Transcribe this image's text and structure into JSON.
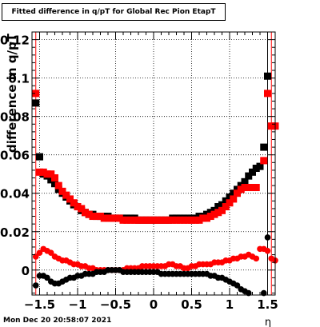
{
  "chart_data": {
    "type": "scatter",
    "title": "Fitted difference in q/pT for Global Rec Pion EtapT",
    "xlabel": "η",
    "ylabel": "difference in q/pT",
    "xlim": [
      -1.6,
      1.6
    ],
    "ylim": [
      -0.013,
      0.124
    ],
    "x_ticks": [
      -1.5,
      -1,
      -0.5,
      0,
      0.5,
      1,
      1.5
    ],
    "x_tick_labels": [
      "−1.5",
      "−1",
      "−0.5",
      "0",
      "0.5",
      "1",
      "1.5"
    ],
    "y_ticks": [
      0,
      0.02,
      0.04,
      0.06,
      0.08,
      0.1,
      0.12
    ],
    "y_tick_labels": [
      "0",
      "0.02",
      "0.04",
      "0.06",
      "0.08",
      "0.1",
      "0.12"
    ],
    "grid": true,
    "series": [
      {
        "color": "#000000",
        "marker": "square",
        "points": [
          [
            -1.55,
            0.087
          ],
          [
            -1.5,
            0.059
          ],
          [
            -1.45,
            0.05
          ],
          [
            -1.4,
            0.049
          ],
          [
            -1.35,
            0.047
          ],
          [
            -1.3,
            0.045
          ],
          [
            -1.25,
            0.042
          ],
          [
            -1.2,
            0.04
          ],
          [
            -1.15,
            0.038
          ],
          [
            -1.1,
            0.036
          ],
          [
            -1.05,
            0.034
          ],
          [
            -1.0,
            0.033
          ],
          [
            -0.95,
            0.031
          ],
          [
            -0.9,
            0.03
          ],
          [
            -0.85,
            0.029
          ],
          [
            -0.8,
            0.029
          ],
          [
            -0.75,
            0.028
          ],
          [
            -0.7,
            0.028
          ],
          [
            -0.65,
            0.028
          ],
          [
            -0.6,
            0.028
          ],
          [
            -0.55,
            0.027
          ],
          [
            -0.5,
            0.027
          ],
          [
            -0.45,
            0.027
          ],
          [
            -0.4,
            0.027
          ],
          [
            -0.35,
            0.027
          ],
          [
            -0.3,
            0.027
          ],
          [
            -0.25,
            0.027
          ],
          [
            -0.2,
            0.026
          ],
          [
            -0.15,
            0.026
          ],
          [
            -0.1,
            0.026
          ],
          [
            -0.05,
            0.026
          ],
          [
            0.0,
            0.026
          ],
          [
            0.05,
            0.026
          ],
          [
            0.1,
            0.026
          ],
          [
            0.15,
            0.026
          ],
          [
            0.2,
            0.026
          ],
          [
            0.25,
            0.027
          ],
          [
            0.3,
            0.027
          ],
          [
            0.35,
            0.027
          ],
          [
            0.4,
            0.027
          ],
          [
            0.45,
            0.027
          ],
          [
            0.5,
            0.027
          ],
          [
            0.55,
            0.027
          ],
          [
            0.6,
            0.028
          ],
          [
            0.65,
            0.028
          ],
          [
            0.7,
            0.029
          ],
          [
            0.75,
            0.03
          ],
          [
            0.8,
            0.031
          ],
          [
            0.85,
            0.033
          ],
          [
            0.9,
            0.034
          ],
          [
            0.95,
            0.036
          ],
          [
            1.0,
            0.038
          ],
          [
            1.05,
            0.04
          ],
          [
            1.1,
            0.042
          ],
          [
            1.15,
            0.044
          ],
          [
            1.2,
            0.046
          ],
          [
            1.25,
            0.049
          ],
          [
            1.3,
            0.051
          ],
          [
            1.35,
            0.053
          ],
          [
            1.4,
            0.054
          ],
          [
            1.45,
            0.064
          ],
          [
            1.5,
            0.101
          ]
        ]
      },
      {
        "color": "#ff0000",
        "marker": "square",
        "points": [
          [
            -1.55,
            0.092
          ],
          [
            -1.5,
            0.051
          ],
          [
            -1.45,
            0.051
          ],
          [
            -1.4,
            0.05
          ],
          [
            -1.35,
            0.05
          ],
          [
            -1.3,
            0.048
          ],
          [
            -1.25,
            0.044
          ],
          [
            -1.2,
            0.041
          ],
          [
            -1.15,
            0.039
          ],
          [
            -1.1,
            0.037
          ],
          [
            -1.05,
            0.035
          ],
          [
            -1.0,
            0.033
          ],
          [
            -0.95,
            0.032
          ],
          [
            -0.9,
            0.03
          ],
          [
            -0.85,
            0.029
          ],
          [
            -0.8,
            0.028
          ],
          [
            -0.75,
            0.028
          ],
          [
            -0.7,
            0.028
          ],
          [
            -0.65,
            0.027
          ],
          [
            -0.6,
            0.027
          ],
          [
            -0.55,
            0.027
          ],
          [
            -0.5,
            0.027
          ],
          [
            -0.45,
            0.027
          ],
          [
            -0.4,
            0.026
          ],
          [
            -0.35,
            0.026
          ],
          [
            -0.3,
            0.026
          ],
          [
            -0.25,
            0.026
          ],
          [
            -0.2,
            0.026
          ],
          [
            -0.15,
            0.026
          ],
          [
            -0.1,
            0.026
          ],
          [
            -0.05,
            0.026
          ],
          [
            0.0,
            0.026
          ],
          [
            0.05,
            0.026
          ],
          [
            0.1,
            0.026
          ],
          [
            0.15,
            0.026
          ],
          [
            0.2,
            0.026
          ],
          [
            0.25,
            0.026
          ],
          [
            0.3,
            0.026
          ],
          [
            0.35,
            0.026
          ],
          [
            0.4,
            0.026
          ],
          [
            0.45,
            0.026
          ],
          [
            0.5,
            0.026
          ],
          [
            0.55,
            0.026
          ],
          [
            0.6,
            0.026
          ],
          [
            0.65,
            0.027
          ],
          [
            0.7,
            0.027
          ],
          [
            0.75,
            0.028
          ],
          [
            0.8,
            0.029
          ],
          [
            0.85,
            0.03
          ],
          [
            0.9,
            0.031
          ],
          [
            0.95,
            0.033
          ],
          [
            1.0,
            0.035
          ],
          [
            1.05,
            0.037
          ],
          [
            1.1,
            0.04
          ],
          [
            1.15,
            0.042
          ],
          [
            1.2,
            0.043
          ],
          [
            1.25,
            0.043
          ],
          [
            1.3,
            0.043
          ],
          [
            1.35,
            0.043
          ],
          [
            1.45,
            0.057
          ],
          [
            1.5,
            0.092
          ],
          [
            1.55,
            0.075
          ],
          [
            1.6,
            0.075
          ]
        ]
      },
      {
        "color": "#ff0000",
        "marker": "circle",
        "points": [
          [
            -1.55,
            0.007
          ],
          [
            -1.5,
            0.009
          ],
          [
            -1.45,
            0.011
          ],
          [
            -1.4,
            0.01
          ],
          [
            -1.35,
            0.009
          ],
          [
            -1.3,
            0.007
          ],
          [
            -1.25,
            0.006
          ],
          [
            -1.2,
            0.005
          ],
          [
            -1.15,
            0.005
          ],
          [
            -1.1,
            0.004
          ],
          [
            -1.05,
            0.003
          ],
          [
            -1.0,
            0.003
          ],
          [
            -0.95,
            0.002
          ],
          [
            -0.9,
            0.002
          ],
          [
            -0.85,
            0.001
          ],
          [
            -0.8,
            0.001
          ],
          [
            -0.75,
            0.0
          ],
          [
            -0.7,
            0.0
          ],
          [
            -0.65,
            0.0
          ],
          [
            -0.6,
            0.0
          ],
          [
            -0.55,
            0.0
          ],
          [
            -0.5,
            0.0
          ],
          [
            -0.45,
            0.0
          ],
          [
            -0.4,
            0.0
          ],
          [
            -0.35,
            0.001
          ],
          [
            -0.3,
            0.001
          ],
          [
            -0.25,
            0.001
          ],
          [
            -0.2,
            0.001
          ],
          [
            -0.15,
            0.002
          ],
          [
            -0.1,
            0.002
          ],
          [
            -0.05,
            0.002
          ],
          [
            0.0,
            0.002
          ],
          [
            0.05,
            0.002
          ],
          [
            0.1,
            0.002
          ],
          [
            0.15,
            0.002
          ],
          [
            0.2,
            0.003
          ],
          [
            0.25,
            0.003
          ],
          [
            0.3,
            0.002
          ],
          [
            0.35,
            0.002
          ],
          [
            0.4,
            0.001
          ],
          [
            0.45,
            0.001
          ],
          [
            0.5,
            0.002
          ],
          [
            0.55,
            0.002
          ],
          [
            0.6,
            0.003
          ],
          [
            0.65,
            0.003
          ],
          [
            0.7,
            0.003
          ],
          [
            0.75,
            0.003
          ],
          [
            0.8,
            0.004
          ],
          [
            0.85,
            0.004
          ],
          [
            0.9,
            0.004
          ],
          [
            0.95,
            0.005
          ],
          [
            1.0,
            0.005
          ],
          [
            1.05,
            0.006
          ],
          [
            1.1,
            0.006
          ],
          [
            1.15,
            0.007
          ],
          [
            1.2,
            0.007
          ],
          [
            1.25,
            0.008
          ],
          [
            1.3,
            0.007
          ],
          [
            1.35,
            0.006
          ],
          [
            1.4,
            0.011
          ],
          [
            1.45,
            0.011
          ],
          [
            1.5,
            0.01
          ],
          [
            1.55,
            0.006
          ],
          [
            1.6,
            0.005
          ]
        ]
      },
      {
        "color": "#000000",
        "marker": "circle",
        "points": [
          [
            -1.55,
            -0.008
          ],
          [
            -1.5,
            -0.003
          ],
          [
            -1.45,
            -0.003
          ],
          [
            -1.4,
            -0.004
          ],
          [
            -1.35,
            -0.006
          ],
          [
            -1.3,
            -0.007
          ],
          [
            -1.25,
            -0.007
          ],
          [
            -1.2,
            -0.006
          ],
          [
            -1.15,
            -0.005
          ],
          [
            -1.1,
            -0.004
          ],
          [
            -1.05,
            -0.004
          ],
          [
            -1.0,
            -0.003
          ],
          [
            -0.95,
            -0.003
          ],
          [
            -0.9,
            -0.002
          ],
          [
            -0.85,
            -0.002
          ],
          [
            -0.8,
            -0.002
          ],
          [
            -0.75,
            -0.001
          ],
          [
            -0.7,
            -0.001
          ],
          [
            -0.65,
            -0.001
          ],
          [
            -0.6,
            0.0
          ],
          [
            -0.55,
            0.0
          ],
          [
            -0.5,
            0.0
          ],
          [
            -0.45,
            0.0
          ],
          [
            -0.4,
            -0.001
          ],
          [
            -0.35,
            -0.001
          ],
          [
            -0.3,
            -0.001
          ],
          [
            -0.25,
            -0.001
          ],
          [
            -0.2,
            -0.001
          ],
          [
            -0.15,
            -0.001
          ],
          [
            -0.1,
            -0.001
          ],
          [
            -0.05,
            -0.001
          ],
          [
            0.0,
            -0.001
          ],
          [
            0.05,
            -0.001
          ],
          [
            0.1,
            -0.002
          ],
          [
            0.15,
            -0.002
          ],
          [
            0.2,
            -0.002
          ],
          [
            0.25,
            -0.002
          ],
          [
            0.3,
            -0.002
          ],
          [
            0.35,
            -0.002
          ],
          [
            0.4,
            -0.002
          ],
          [
            0.45,
            -0.002
          ],
          [
            0.5,
            -0.002
          ],
          [
            0.55,
            -0.002
          ],
          [
            0.6,
            -0.002
          ],
          [
            0.65,
            -0.002
          ],
          [
            0.7,
            -0.002
          ],
          [
            0.75,
            -0.003
          ],
          [
            0.8,
            -0.003
          ],
          [
            0.85,
            -0.004
          ],
          [
            0.9,
            -0.004
          ],
          [
            0.95,
            -0.005
          ],
          [
            1.0,
            -0.006
          ],
          [
            1.05,
            -0.007
          ],
          [
            1.1,
            -0.008
          ],
          [
            1.15,
            -0.01
          ],
          [
            1.2,
            -0.011
          ],
          [
            1.25,
            -0.012
          ],
          [
            1.45,
            -0.012
          ],
          [
            1.5,
            0.017
          ]
        ]
      }
    ]
  },
  "footer_timestamp": "Mon Dec 20 20:58:07 2021"
}
